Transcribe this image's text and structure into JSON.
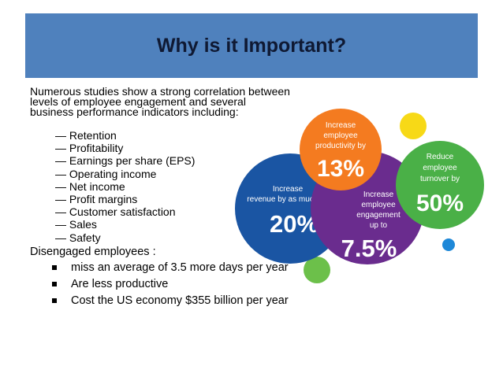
{
  "title": "Why is it Important?",
  "intro": "Numerous studies show a strong correlation between levels of employee engagement and several business performance indicators including:",
  "indicators": [
    "Retention",
    "Profitability",
    "Earnings per share (EPS)",
    "Operating income",
    "Net income",
    "Profit margins",
    "Customer satisfaction",
    "Sales",
    "Safety"
  ],
  "disengaged_heading": "Disengaged employees :",
  "disengaged_points": [
    "miss an average of 3.5 more days per year",
    "Are less productive",
    "Cost the US economy $355 billion per year"
  ],
  "graphic": {
    "revenue": {
      "line1": "Increase",
      "line2": "revenue by as much as",
      "value": "20%"
    },
    "productivity": {
      "line1": "Increase",
      "line2": "employee",
      "line3": "productivity by",
      "value": "13%"
    },
    "engagement": {
      "line1": "Increase",
      "line2": "employee",
      "line3": "engagement",
      "line4": "up to",
      "value": "7.5%"
    },
    "turnover": {
      "line1": "Reduce",
      "line2": "employee",
      "line3": "turnover by",
      "value": "50%"
    }
  },
  "colors": {
    "title_bar": "#4f81bd",
    "revenue_circle": "#1a55a3",
    "productivity_circle": "#f47b20",
    "engagement_circle": "#6a2c8e",
    "turnover_circle": "#4ab047",
    "dot_yellow": "#f7d917",
    "dot_green": "#6cc04a",
    "dot_blue": "#1e88d8"
  }
}
